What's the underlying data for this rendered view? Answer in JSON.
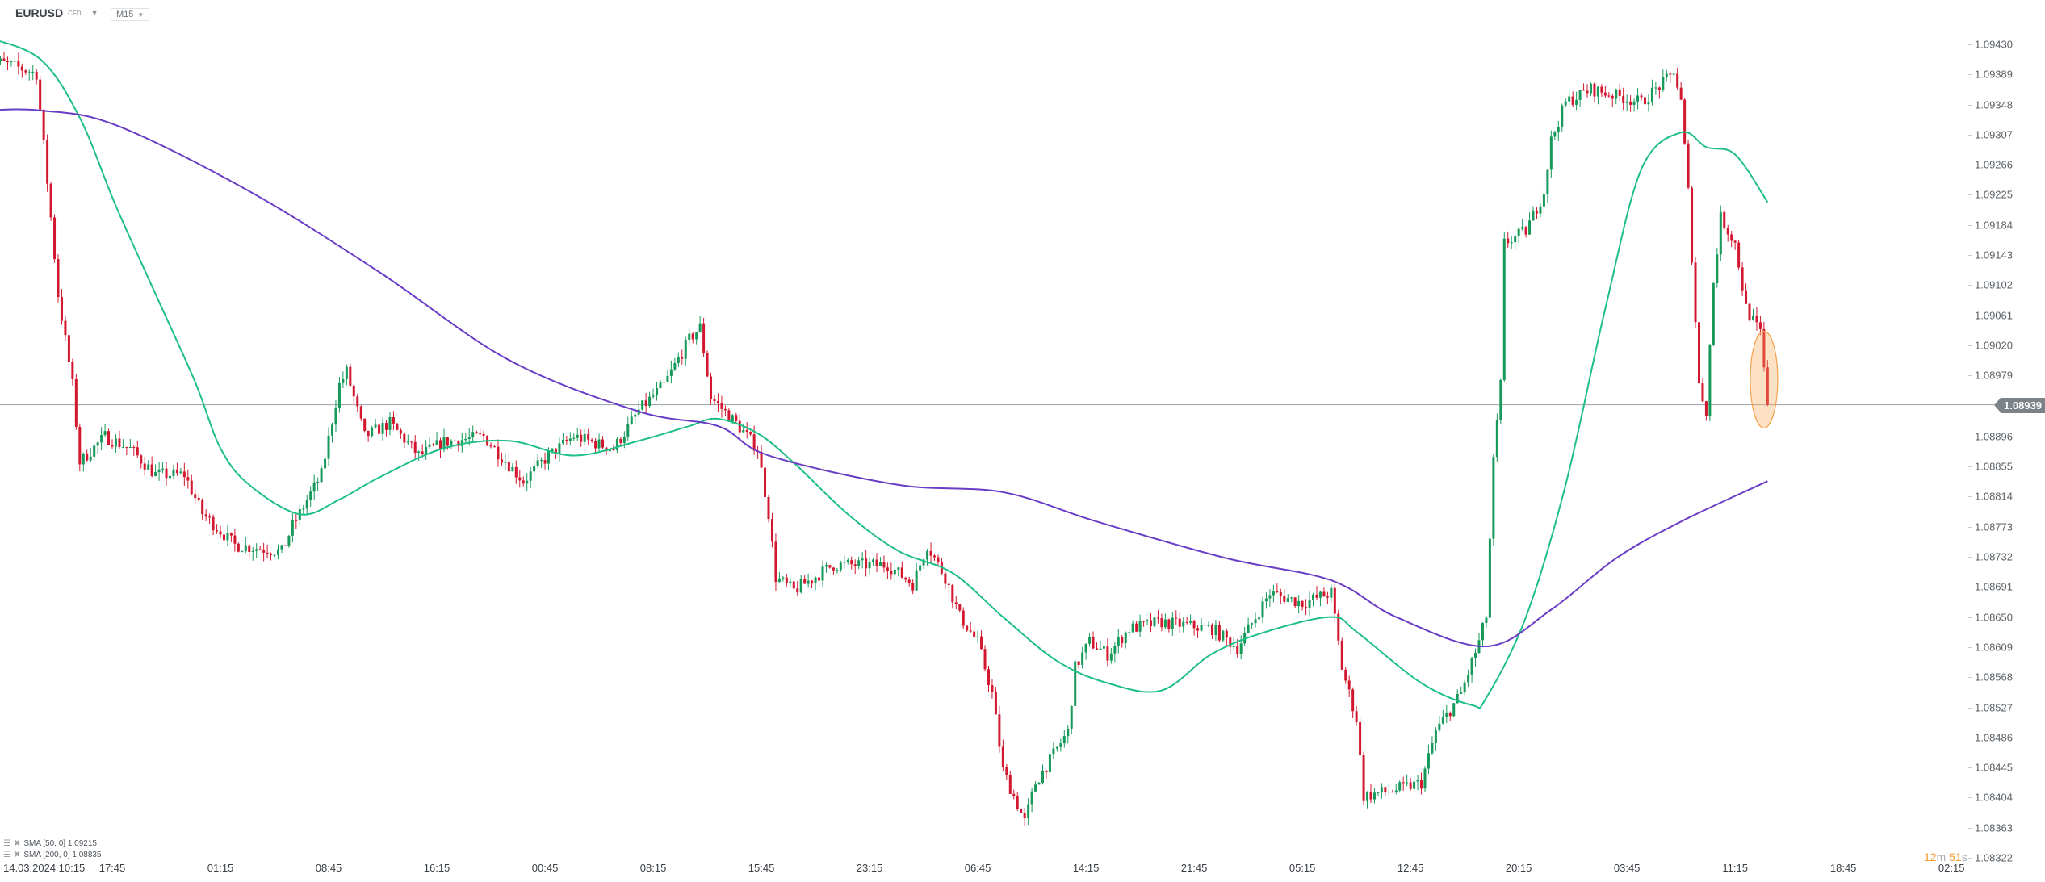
{
  "header": {
    "symbol": "EURUSD",
    "instrument_type": "CFD",
    "timeframe": "M15"
  },
  "legend": [
    {
      "label": "SMA [50, 0] 1.09215",
      "color": "#1dbf86"
    },
    {
      "label": "SMA [200, 0] 1.08835",
      "color": "#6a3dc6"
    }
  ],
  "current_price": "1.08939",
  "countdown": {
    "minutes": "12",
    "minutes_unit": "m",
    "seconds": "51",
    "seconds_unit": "s"
  },
  "colors": {
    "up": "#17995a",
    "down": "#d2172e",
    "sma50": "#1dbf86",
    "sma200": "#6a3dc6",
    "price_line": "#9a9fa4",
    "highlight": "#f5a04a"
  },
  "chart_data": {
    "type": "candlestick",
    "bar_interval": "15 minutes",
    "ylim": [
      1.08322,
      1.0943
    ],
    "y_ticks": [
      "1.09430",
      "1.09389",
      "1.09348",
      "1.09307",
      "1.09266",
      "1.09225",
      "1.09184",
      "1.09143",
      "1.09102",
      "1.09061",
      "1.09020",
      "1.08979",
      "1.08939",
      "1.08896",
      "1.08855",
      "1.08814",
      "1.08773",
      "1.08732",
      "1.08691",
      "1.08650",
      "1.08609",
      "1.08568",
      "1.08527",
      "1.08486",
      "1.08445",
      "1.08404",
      "1.08363",
      "1.08322"
    ],
    "x_ticks": [
      {
        "bar": 5,
        "label": "14.03.2024  10:15"
      },
      {
        "bar": 35,
        "label": "17:45"
      },
      {
        "bar": 65,
        "label": "01:15"
      },
      {
        "bar": 95,
        "label": "08:45"
      },
      {
        "bar": 125,
        "label": "16:15"
      },
      {
        "bar": 155,
        "label": "00:45"
      },
      {
        "bar": 185,
        "label": "08:15"
      },
      {
        "bar": 215,
        "label": "15:45"
      },
      {
        "bar": 245,
        "label": "23:15"
      },
      {
        "bar": 275,
        "label": "06:45"
      },
      {
        "bar": 305,
        "label": "14:15"
      },
      {
        "bar": 335,
        "label": "21:45"
      },
      {
        "bar": 365,
        "label": "05:15"
      },
      {
        "bar": 395,
        "label": "12:45"
      },
      {
        "bar": 425,
        "label": "20:15"
      },
      {
        "bar": 455,
        "label": "03:45"
      },
      {
        "bar": 485,
        "label": "11:15"
      },
      {
        "bar": 515,
        "label": "18:45"
      },
      {
        "bar": 545,
        "label": "02:15"
      }
    ],
    "price_path": [
      [
        0,
        1.0941
      ],
      [
        8,
        1.094
      ],
      [
        14,
        1.0939
      ],
      [
        18,
        1.09194
      ],
      [
        20,
        1.09089
      ],
      [
        24,
        1.08966
      ],
      [
        26,
        1.08861
      ],
      [
        33,
        1.08896
      ],
      [
        40,
        1.08879
      ],
      [
        47,
        1.08844
      ],
      [
        55,
        1.08844
      ],
      [
        60,
        1.08791
      ],
      [
        69,
        1.08748
      ],
      [
        82,
        1.08739
      ],
      [
        85,
        1.08774
      ],
      [
        93,
        1.08844
      ],
      [
        98,
        1.08966
      ],
      [
        100,
        1.08984
      ],
      [
        105,
        1.08896
      ],
      [
        112,
        1.08914
      ],
      [
        120,
        1.0887
      ],
      [
        127,
        1.08888
      ],
      [
        138,
        1.08896
      ],
      [
        149,
        1.08835
      ],
      [
        156,
        1.0887
      ],
      [
        163,
        1.08896
      ],
      [
        174,
        1.08879
      ],
      [
        181,
        1.08931
      ],
      [
        188,
        1.08966
      ],
      [
        195,
        1.09028
      ],
      [
        198,
        1.09045
      ],
      [
        201,
        1.08949
      ],
      [
        208,
        1.08914
      ],
      [
        214,
        1.08879
      ],
      [
        217,
        1.08791
      ],
      [
        219,
        1.08704
      ],
      [
        224,
        1.08686
      ],
      [
        235,
        1.08721
      ],
      [
        250,
        1.08721
      ],
      [
        257,
        1.08695
      ],
      [
        261,
        1.08748
      ],
      [
        266,
        1.08704
      ],
      [
        270,
        1.08651
      ],
      [
        275,
        1.08616
      ],
      [
        279,
        1.08546
      ],
      [
        282,
        1.08441
      ],
      [
        288,
        1.08371
      ],
      [
        291,
        1.08424
      ],
      [
        300,
        1.08494
      ],
      [
        302,
        1.08581
      ],
      [
        306,
        1.08616
      ],
      [
        311,
        1.08599
      ],
      [
        317,
        1.08634
      ],
      [
        326,
        1.08643
      ],
      [
        340,
        1.08634
      ],
      [
        347,
        1.08608
      ],
      [
        356,
        1.08683
      ],
      [
        365,
        1.08669
      ],
      [
        373,
        1.08683
      ],
      [
        376,
        1.08581
      ],
      [
        380,
        1.08511
      ],
      [
        382,
        1.08406
      ],
      [
        391,
        1.08415
      ],
      [
        398,
        1.08424
      ],
      [
        402,
        1.08494
      ],
      [
        409,
        1.08546
      ],
      [
        414,
        1.08616
      ],
      [
        416,
        1.08651
      ],
      [
        418,
        1.08861
      ],
      [
        420,
        1.08966
      ],
      [
        421,
        1.09159
      ],
      [
        427,
        1.09176
      ],
      [
        432,
        1.09229
      ],
      [
        434,
        1.09299
      ],
      [
        438,
        1.09351
      ],
      [
        445,
        1.09369
      ],
      [
        459,
        1.09351
      ],
      [
        467,
        1.09386
      ],
      [
        468,
        1.09395
      ],
      [
        470,
        1.09351
      ],
      [
        472,
        1.09229
      ],
      [
        475,
        1.08966
      ],
      [
        477,
        1.08931
      ],
      [
        479,
        1.09106
      ],
      [
        481,
        1.09194
      ],
      [
        485,
        1.09159
      ],
      [
        488,
        1.09071
      ],
      [
        492,
        1.09036
      ],
      [
        494,
        1.08939
      ]
    ],
    "series": [
      {
        "name": "SMA [50, 0]",
        "points": [
          [
            0,
            1.0944
          ],
          [
            15,
            1.0941
          ],
          [
            26,
            1.0933
          ],
          [
            36,
            1.0921
          ],
          [
            47,
            1.0909
          ],
          [
            58,
            1.0897
          ],
          [
            65,
            1.0888
          ],
          [
            73,
            1.0883
          ],
          [
            87,
            1.0879
          ],
          [
            98,
            1.0881
          ],
          [
            109,
            1.0884
          ],
          [
            127,
            1.0888
          ],
          [
            145,
            1.0889
          ],
          [
            163,
            1.0887
          ],
          [
            181,
            1.0889
          ],
          [
            195,
            1.0891
          ],
          [
            203,
            1.0892
          ],
          [
            214,
            1.089
          ],
          [
            224,
            1.0886
          ],
          [
            239,
            1.0879
          ],
          [
            253,
            1.0874
          ],
          [
            268,
            1.0871
          ],
          [
            282,
            1.0865
          ],
          [
            297,
            1.0859
          ],
          [
            311,
            1.0856
          ],
          [
            326,
            1.0855
          ],
          [
            340,
            1.086
          ],
          [
            355,
            1.0863
          ],
          [
            373,
            1.0865
          ],
          [
            380,
            1.0863
          ],
          [
            398,
            1.0856
          ],
          [
            412,
            1.0853
          ],
          [
            416,
            1.0854
          ],
          [
            427,
            1.0865
          ],
          [
            438,
            1.0883
          ],
          [
            449,
            1.0907
          ],
          [
            459,
            1.0926
          ],
          [
            470,
            1.0931
          ],
          [
            477,
            1.0929
          ],
          [
            485,
            1.0928
          ],
          [
            494,
            1.09215
          ]
        ]
      },
      {
        "name": "SMA [200, 0]",
        "points": [
          [
            0,
            1.0934
          ],
          [
            15,
            1.0934
          ],
          [
            36,
            1.0932
          ],
          [
            73,
            1.0923
          ],
          [
            109,
            1.0912
          ],
          [
            145,
            1.09
          ],
          [
            181,
            1.0893
          ],
          [
            203,
            1.0891
          ],
          [
            217,
            1.0887
          ],
          [
            253,
            1.0883
          ],
          [
            282,
            1.0882
          ],
          [
            308,
            1.0878
          ],
          [
            344,
            1.0873
          ],
          [
            373,
            1.087
          ],
          [
            391,
            1.0865
          ],
          [
            416,
            1.0861
          ],
          [
            434,
            1.0866
          ],
          [
            452,
            1.0873
          ],
          [
            470,
            1.0878
          ],
          [
            494,
            1.08835
          ]
        ]
      }
    ]
  }
}
